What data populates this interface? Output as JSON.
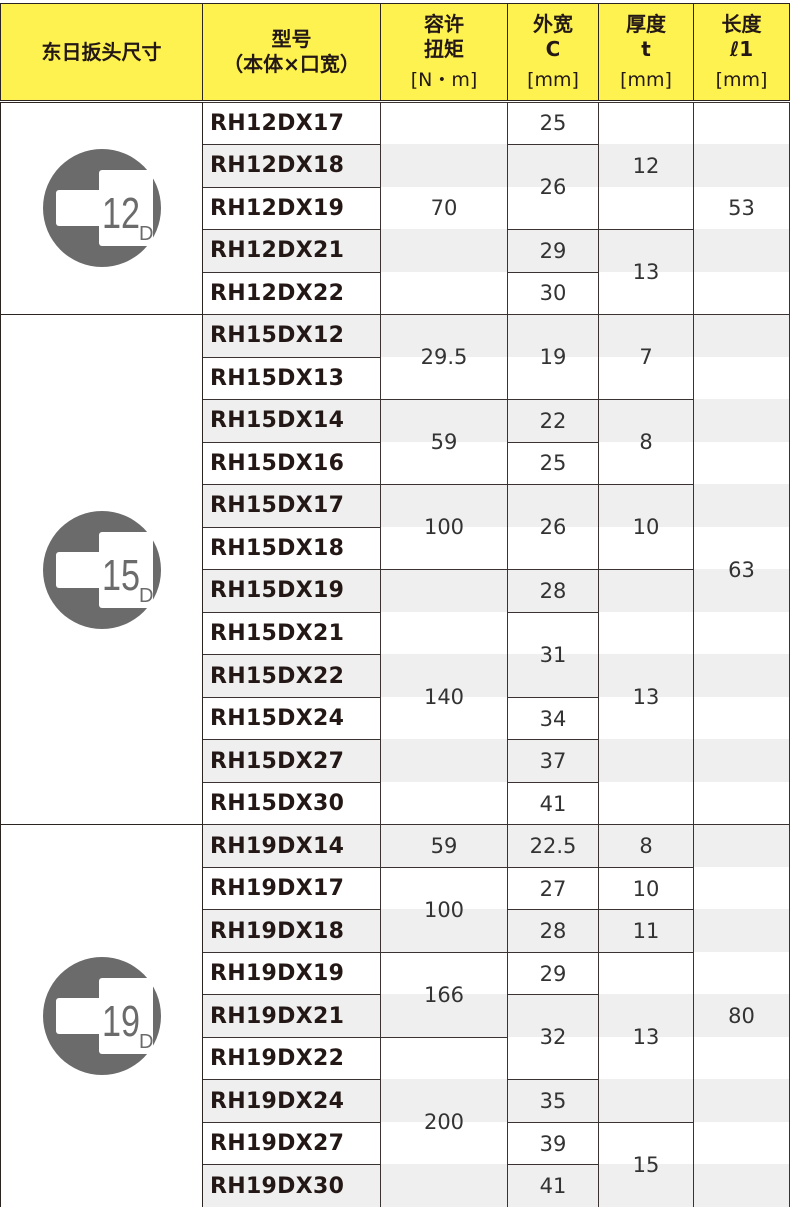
{
  "header": {
    "size": "东日扳头尺寸",
    "model": [
      "型号",
      "（本体×口宽）"
    ],
    "torque": [
      "容许",
      "扭矩",
      "[N・m]"
    ],
    "width": [
      "外宽",
      "C",
      "[mm]"
    ],
    "thickness": [
      "厚度",
      "t",
      "[mm]"
    ],
    "length": [
      "长度",
      "ℓ1",
      "[mm]"
    ]
  },
  "colors": {
    "header_bg": "#fdf250",
    "stripe": "#efefef",
    "icon": "#6b6b6b"
  },
  "groups": [
    {
      "icon": "12D-head-icon",
      "size": "12",
      "suffix": "D",
      "models": [
        "RH12DX17",
        "RH12DX18",
        "RH12DX19",
        "RH12DX21",
        "RH12DX22"
      ],
      "torque": [
        [
          "70",
          5
        ]
      ],
      "width": [
        [
          "25",
          1
        ],
        [
          "26",
          2
        ],
        [
          "29",
          1
        ],
        [
          "30",
          1
        ]
      ],
      "thickness": [
        [
          "12",
          3
        ],
        [
          "13",
          2
        ]
      ],
      "length": [
        [
          "53",
          5
        ]
      ]
    },
    {
      "icon": "15D-head-icon",
      "size": "15",
      "suffix": "D",
      "models": [
        "RH15DX12",
        "RH15DX13",
        "RH15DX14",
        "RH15DX16",
        "RH15DX17",
        "RH15DX18",
        "RH15DX19",
        "RH15DX21",
        "RH15DX22",
        "RH15DX24",
        "RH15DX27",
        "RH15DX30"
      ],
      "torque": [
        [
          "29.5",
          2
        ],
        [
          "59",
          2
        ],
        [
          "100",
          2
        ],
        [
          "140",
          6
        ]
      ],
      "width": [
        [
          "19",
          2
        ],
        [
          "22",
          1
        ],
        [
          "25",
          1
        ],
        [
          "26",
          2
        ],
        [
          "28",
          1
        ],
        [
          "31",
          2
        ],
        [
          "34",
          1
        ],
        [
          "37",
          1
        ],
        [
          "41",
          1
        ]
      ],
      "thickness": [
        [
          "7",
          2
        ],
        [
          "8",
          2
        ],
        [
          "10",
          2
        ],
        [
          "13",
          6
        ]
      ],
      "length": [
        [
          "63",
          12
        ]
      ]
    },
    {
      "icon": "19D-head-icon",
      "size": "19",
      "suffix": "D",
      "models": [
        "RH19DX14",
        "RH19DX17",
        "RH19DX18",
        "RH19DX19",
        "RH19DX21",
        "RH19DX22",
        "RH19DX24",
        "RH19DX27",
        "RH19DX30"
      ],
      "torque": [
        [
          "59",
          1
        ],
        [
          "100",
          2
        ],
        [
          "166",
          2
        ],
        [
          "200",
          4
        ]
      ],
      "width": [
        [
          "22.5",
          1
        ],
        [
          "27",
          1
        ],
        [
          "28",
          1
        ],
        [
          "29",
          1
        ],
        [
          "32",
          2
        ],
        [
          "35",
          1
        ],
        [
          "39",
          1
        ],
        [
          "41",
          1
        ]
      ],
      "thickness": [
        [
          "8",
          1
        ],
        [
          "10",
          1
        ],
        [
          "11",
          1
        ],
        [
          "13",
          4
        ],
        [
          "15",
          2
        ]
      ],
      "length": [
        [
          "80",
          9
        ]
      ]
    }
  ]
}
